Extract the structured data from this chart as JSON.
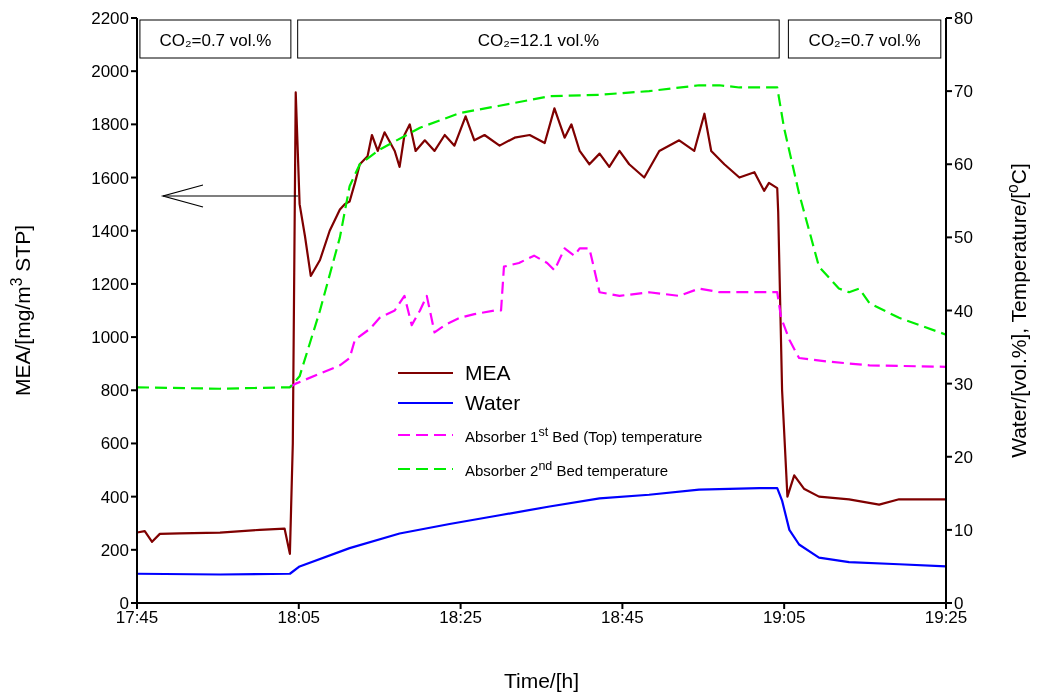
{
  "chart_data": {
    "type": "line",
    "xlabel": "Time/[h]",
    "ylabel": "MEA/[mg/m$^{3}$ STP]",
    "y2label": "Water/[vol.%], Temperature/[$^{o}$C]",
    "xlim": [
      17.75,
      19.4167
    ],
    "xticks": [
      {
        "value": 17.75,
        "label": "17:45"
      },
      {
        "value": 18.0833,
        "label": "18:05"
      },
      {
        "value": 18.4167,
        "label": "18:25"
      },
      {
        "value": 18.75,
        "label": "18:45"
      },
      {
        "value": 19.0833,
        "label": "19:05"
      },
      {
        "value": 19.4167,
        "label": "19:25"
      }
    ],
    "ylim": [
      0,
      2200
    ],
    "yticks": [
      0,
      200,
      400,
      600,
      800,
      1000,
      1200,
      1400,
      1600,
      1800,
      2000,
      2200
    ],
    "y2lim": [
      0,
      80
    ],
    "y2ticks": [
      0,
      10,
      20,
      30,
      40,
      50,
      60,
      70,
      80
    ],
    "grid": false,
    "legend": "bottom",
    "marker": "none",
    "bands": [
      {
        "axis": "x",
        "from": 17.756,
        "to": 18.067,
        "label": "CO₂=0.7 vol.%"
      },
      {
        "axis": "x",
        "from": 18.081,
        "to": 19.073,
        "label": "CO₂=12.1 vol.%"
      },
      {
        "axis": "x",
        "from": 19.092,
        "to": 19.406,
        "label": "CO₂=0.7 vol.%"
      }
    ],
    "series": [
      {
        "name": "MEA",
        "color": "#7f0000",
        "line_style": "solid",
        "x": [
          17.75,
          17.766,
          17.781,
          17.797,
          17.838,
          17.921,
          18.003,
          18.054,
          18.065,
          18.071,
          18.077,
          18.085,
          18.096,
          18.108,
          18.127,
          18.147,
          18.168,
          18.178,
          18.188,
          18.199,
          18.209,
          18.225,
          18.234,
          18.246,
          18.26,
          18.281,
          18.291,
          18.301,
          18.312,
          18.324,
          18.343,
          18.363,
          18.384,
          18.404,
          18.427,
          18.445,
          18.466,
          18.497,
          18.528,
          18.559,
          18.59,
          18.61,
          18.631,
          18.645,
          18.662,
          18.682,
          18.703,
          18.723,
          18.744,
          18.764,
          18.795,
          18.826,
          18.867,
          18.898,
          18.919,
          18.933,
          18.96,
          18.991,
          19.022,
          19.042,
          19.052,
          19.069,
          19.071,
          19.079,
          19.09,
          19.104,
          19.124,
          19.155,
          19.217,
          19.279,
          19.32,
          19.4167
        ],
        "values": [
          265,
          270,
          230,
          260,
          262,
          265,
          275,
          280,
          185,
          600,
          1920,
          1500,
          1380,
          1230,
          1290,
          1400,
          1480,
          1500,
          1510,
          1580,
          1650,
          1680,
          1760,
          1700,
          1770,
          1700,
          1640,
          1760,
          1800,
          1700,
          1740,
          1700,
          1760,
          1720,
          1830,
          1740,
          1760,
          1720,
          1750,
          1760,
          1730,
          1860,
          1750,
          1800,
          1700,
          1650,
          1690,
          1640,
          1700,
          1650,
          1600,
          1700,
          1740,
          1700,
          1840,
          1700,
          1650,
          1600,
          1620,
          1550,
          1580,
          1560,
          1470,
          800,
          400,
          480,
          430,
          400,
          390,
          370,
          390,
          390
        ]
      },
      {
        "name": "Water",
        "color": "#0000ff",
        "axis": "y2",
        "line_style": "solid",
        "x": [
          17.75,
          17.921,
          18.065,
          18.085,
          18.188,
          18.291,
          18.394,
          18.497,
          18.6,
          18.703,
          18.805,
          18.908,
          19.032,
          19.069,
          19.079,
          19.094,
          19.114,
          19.155,
          19.217,
          19.32,
          19.4167
        ],
        "values": [
          4,
          3.9,
          4,
          5,
          7.5,
          9.5,
          10.8,
          12,
          13.2,
          14.3,
          14.8,
          15.5,
          15.7,
          15.7,
          14,
          10,
          8,
          6.2,
          5.6,
          5.3,
          5
        ]
      },
      {
        "name": "Absorber 1$^{st}$ Bed (Top) temperature",
        "color": "#ff00ff",
        "axis": "y2",
        "line_style": "dashed",
        "x": [
          18.065,
          18.077,
          18.168,
          18.188,
          18.199,
          18.23,
          18.25,
          18.281,
          18.301,
          18.316,
          18.333,
          18.347,
          18.363,
          18.384,
          18.415,
          18.445,
          18.486,
          18.5,
          18.506,
          18.537,
          18.568,
          18.595,
          18.61,
          18.631,
          18.651,
          18.662,
          18.682,
          18.703,
          18.744,
          18.805,
          18.867,
          18.908,
          18.95,
          19.032,
          19.069,
          19.077,
          19.094,
          19.114,
          19.176,
          19.259,
          19.4167
        ],
        "values": [
          29.5,
          30,
          32.5,
          33.5,
          36,
          37.5,
          39,
          40,
          42,
          38,
          40,
          42,
          37,
          38,
          39,
          39.5,
          40,
          40,
          46,
          46.5,
          47.5,
          46.5,
          45.5,
          48.5,
          47.5,
          48.5,
          48.5,
          42.5,
          42,
          42.5,
          42,
          43,
          42.5,
          42.5,
          42.5,
          39,
          36,
          33.5,
          33,
          32.5,
          32.3
        ]
      },
      {
        "name": "Absorber 2$^{nd}$ Bed temperature",
        "color": "#00ee00",
        "axis": "y2",
        "line_style": "dashed",
        "x": [
          17.75,
          17.921,
          18.065,
          18.085,
          18.127,
          18.168,
          18.188,
          18.209,
          18.25,
          18.333,
          18.415,
          18.497,
          18.6,
          18.703,
          18.805,
          18.908,
          18.95,
          18.991,
          19.069,
          19.083,
          19.114,
          19.155,
          19.196,
          19.217,
          19.238,
          19.259,
          19.32,
          19.4167
        ],
        "values": [
          29.5,
          29.3,
          29.5,
          31,
          40,
          50,
          57,
          60,
          62,
          65,
          67,
          68,
          69.3,
          69.5,
          70,
          70.8,
          70.8,
          70.5,
          70.5,
          65,
          56,
          46,
          43,
          42.5,
          43,
          41,
          39,
          36.7
        ]
      }
    ]
  }
}
